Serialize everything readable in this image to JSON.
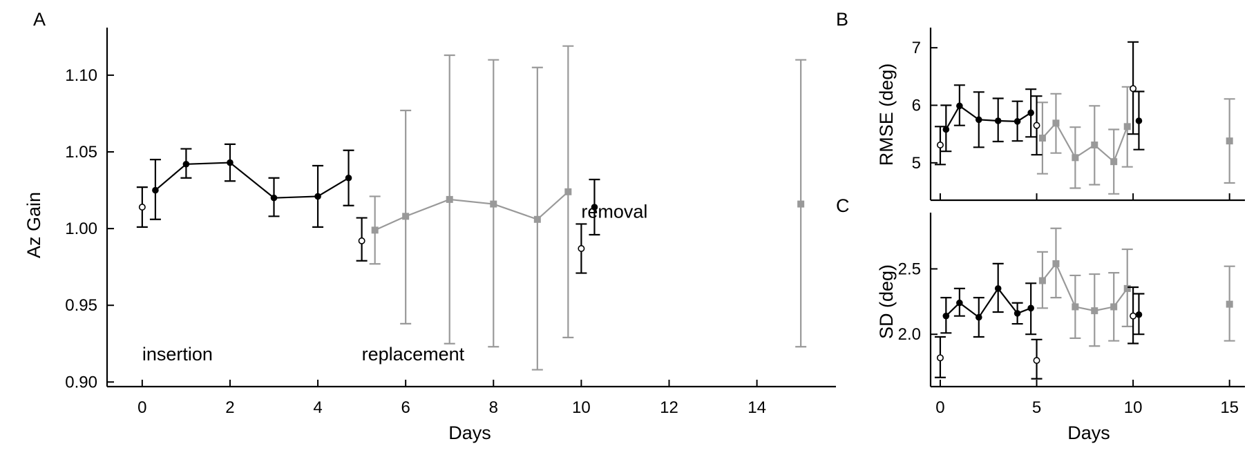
{
  "colors": {
    "black": "#000000",
    "gray": "#999999",
    "open_fill": "#ffffff"
  },
  "chart_data": [
    {
      "panel": "A",
      "type": "line",
      "xlabel": "Days",
      "ylabel": "Az Gain",
      "xlim": [
        -0.8,
        15.8
      ],
      "ylim": [
        0.897,
        1.131
      ],
      "xticks": [
        0,
        2,
        4,
        6,
        8,
        10,
        12,
        14
      ],
      "yticks": [
        0.9,
        0.95,
        1.0,
        1.05,
        1.1
      ],
      "ytick_labels": [
        "0.90",
        "0.95",
        "1.00",
        "1.05",
        "1.10"
      ],
      "annotations": [
        {
          "text": "insertion",
          "x": 0,
          "y": 0.914
        },
        {
          "text": "replacement",
          "x": 5.0,
          "y": 0.914
        },
        {
          "text": "removal",
          "x": 10.0,
          "y": 1.007
        }
      ],
      "series": [
        {
          "style": "black-filled-line",
          "connect": true,
          "points": [
            {
              "x": 0.3,
              "y": 1.025,
              "lo": 1.006,
              "hi": 1.045
            },
            {
              "x": 1.0,
              "y": 1.042,
              "lo": 1.033,
              "hi": 1.052
            },
            {
              "x": 2.0,
              "y": 1.043,
              "lo": 1.031,
              "hi": 1.055
            },
            {
              "x": 3.0,
              "y": 1.02,
              "lo": 1.008,
              "hi": 1.033
            },
            {
              "x": 4.0,
              "y": 1.021,
              "lo": 1.001,
              "hi": 1.041
            },
            {
              "x": 4.7,
              "y": 1.033,
              "lo": 1.015,
              "hi": 1.051
            }
          ]
        },
        {
          "style": "black-open",
          "connect": false,
          "points": [
            {
              "x": 0.0,
              "y": 1.014,
              "lo": 1.001,
              "hi": 1.027
            },
            {
              "x": 5.0,
              "y": 0.992,
              "lo": 0.979,
              "hi": 1.007
            },
            {
              "x": 10.0,
              "y": 0.987,
              "lo": 0.971,
              "hi": 1.003
            }
          ]
        },
        {
          "style": "black-filled",
          "connect": false,
          "points": [
            {
              "x": 10.3,
              "y": 1.014,
              "lo": 0.996,
              "hi": 1.032
            }
          ]
        },
        {
          "style": "gray-square-line",
          "connect": true,
          "points": [
            {
              "x": 5.3,
              "y": 0.999,
              "lo": 0.977,
              "hi": 1.021
            },
            {
              "x": 6.0,
              "y": 1.008,
              "lo": 0.938,
              "hi": 1.077
            },
            {
              "x": 7.0,
              "y": 1.019,
              "lo": 0.925,
              "hi": 1.113
            },
            {
              "x": 8.0,
              "y": 1.016,
              "lo": 0.923,
              "hi": 1.11
            },
            {
              "x": 9.0,
              "y": 1.006,
              "lo": 0.908,
              "hi": 1.105
            },
            {
              "x": 9.7,
              "y": 1.024,
              "lo": 0.929,
              "hi": 1.119
            }
          ]
        },
        {
          "style": "gray-square",
          "connect": false,
          "points": [
            {
              "x": 15.0,
              "y": 1.016,
              "lo": 0.923,
              "hi": 1.11
            }
          ]
        }
      ]
    },
    {
      "panel": "B",
      "type": "line",
      "xlabel": "",
      "ylabel": "RMSE (deg)",
      "xlim": [
        -0.5,
        15.8
      ],
      "ylim": [
        4.35,
        7.35
      ],
      "xticks": [
        0,
        5,
        10,
        15
      ],
      "yticks": [
        5,
        6,
        7
      ],
      "ytick_labels": [
        "5",
        "6",
        "7"
      ],
      "series": [
        {
          "style": "black-filled-line",
          "connect": true,
          "points": [
            {
              "x": 0.3,
              "y": 5.58,
              "lo": 5.2,
              "hi": 6.0
            },
            {
              "x": 1.0,
              "y": 5.99,
              "lo": 5.65,
              "hi": 6.35
            },
            {
              "x": 2.0,
              "y": 5.75,
              "lo": 5.27,
              "hi": 6.23
            },
            {
              "x": 3.0,
              "y": 5.73,
              "lo": 5.37,
              "hi": 6.12
            },
            {
              "x": 4.0,
              "y": 5.72,
              "lo": 5.38,
              "hi": 6.07
            },
            {
              "x": 4.7,
              "y": 5.87,
              "lo": 5.45,
              "hi": 6.28
            }
          ]
        },
        {
          "style": "black-open",
          "connect": false,
          "points": [
            {
              "x": 0.0,
              "y": 5.31,
              "lo": 4.97,
              "hi": 5.63
            },
            {
              "x": 5.0,
              "y": 5.65,
              "lo": 5.14,
              "hi": 6.16
            },
            {
              "x": 10.0,
              "y": 6.29,
              "lo": 5.5,
              "hi": 7.1
            }
          ]
        },
        {
          "style": "black-filled",
          "connect": false,
          "points": [
            {
              "x": 10.3,
              "y": 5.73,
              "lo": 5.23,
              "hi": 6.24
            }
          ]
        },
        {
          "style": "gray-square-line",
          "connect": true,
          "points": [
            {
              "x": 5.3,
              "y": 5.43,
              "lo": 4.81,
              "hi": 6.05
            },
            {
              "x": 6.0,
              "y": 5.69,
              "lo": 5.17,
              "hi": 6.2
            },
            {
              "x": 7.0,
              "y": 5.09,
              "lo": 4.56,
              "hi": 5.62
            },
            {
              "x": 8.0,
              "y": 5.31,
              "lo": 4.62,
              "hi": 5.99
            },
            {
              "x": 9.0,
              "y": 5.02,
              "lo": 4.46,
              "hi": 5.58
            },
            {
              "x": 9.7,
              "y": 5.63,
              "lo": 4.93,
              "hi": 6.32
            }
          ]
        },
        {
          "style": "gray-square",
          "connect": false,
          "points": [
            {
              "x": 15.0,
              "y": 5.38,
              "lo": 4.65,
              "hi": 6.11
            }
          ]
        }
      ]
    },
    {
      "panel": "C",
      "type": "line",
      "xlabel": "Days",
      "ylabel": "SD (deg)",
      "xlim": [
        -0.5,
        15.8
      ],
      "ylim": [
        1.6,
        2.93
      ],
      "xticks": [
        0,
        5,
        10,
        15
      ],
      "yticks": [
        2.0,
        2.5
      ],
      "ytick_labels": [
        "2.0",
        "2.5"
      ],
      "series": [
        {
          "style": "black-filled-line",
          "connect": true,
          "points": [
            {
              "x": 0.3,
              "y": 2.14,
              "lo": 2.01,
              "hi": 2.28
            },
            {
              "x": 1.0,
              "y": 2.24,
              "lo": 2.14,
              "hi": 2.35
            },
            {
              "x": 2.0,
              "y": 2.13,
              "lo": 1.98,
              "hi": 2.28
            },
            {
              "x": 3.0,
              "y": 2.35,
              "lo": 2.17,
              "hi": 2.54
            },
            {
              "x": 4.0,
              "y": 2.16,
              "lo": 2.08,
              "hi": 2.24
            },
            {
              "x": 4.7,
              "y": 2.2,
              "lo": 2.0,
              "hi": 2.39
            }
          ]
        },
        {
          "style": "black-open",
          "connect": false,
          "points": [
            {
              "x": 0.0,
              "y": 1.82,
              "lo": 1.67,
              "hi": 1.98
            },
            {
              "x": 5.0,
              "y": 1.8,
              "lo": 1.66,
              "hi": 1.96
            },
            {
              "x": 10.0,
              "y": 2.14,
              "lo": 1.93,
              "hi": 2.36
            }
          ]
        },
        {
          "style": "black-filled",
          "connect": false,
          "points": [
            {
              "x": 10.3,
              "y": 2.15,
              "lo": 2.0,
              "hi": 2.31
            }
          ]
        },
        {
          "style": "gray-square-line",
          "connect": true,
          "points": [
            {
              "x": 5.3,
              "y": 2.41,
              "lo": 2.2,
              "hi": 2.63
            },
            {
              "x": 6.0,
              "y": 2.54,
              "lo": 2.28,
              "hi": 2.81
            },
            {
              "x": 7.0,
              "y": 2.21,
              "lo": 1.97,
              "hi": 2.45
            },
            {
              "x": 8.0,
              "y": 2.18,
              "lo": 1.91,
              "hi": 2.46
            },
            {
              "x": 9.0,
              "y": 2.21,
              "lo": 1.95,
              "hi": 2.47
            },
            {
              "x": 9.7,
              "y": 2.35,
              "lo": 2.06,
              "hi": 2.65
            }
          ]
        },
        {
          "style": "gray-square",
          "connect": false,
          "points": [
            {
              "x": 15.0,
              "y": 2.23,
              "lo": 1.95,
              "hi": 2.52
            }
          ]
        }
      ]
    }
  ]
}
